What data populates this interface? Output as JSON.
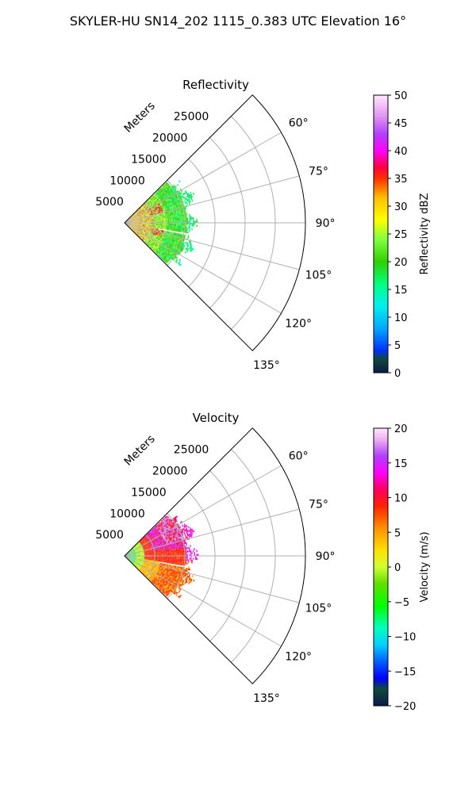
{
  "title": "SKYLER-HU  SN14_202  1115_0.383 UTC Elevation 16°",
  "chart_data": [
    {
      "type": "heatmap",
      "subtype": "polar-sector (PPI)",
      "title": "Reflectivity",
      "radial_label": "Meters",
      "radial_ticks": [
        "5000",
        "10000",
        "15000",
        "20000",
        "25000"
      ],
      "radial_lim": [
        0,
        30000
      ],
      "angle_ticks": [
        "60°",
        "75°",
        "90°",
        "105°",
        "120°",
        "135°"
      ],
      "angle_lim": [
        45,
        135
      ],
      "data_extent_m": [
        0,
        12500
      ],
      "colorbar": {
        "label": "Reflectivity dBZ",
        "ticks": [
          "0",
          "5",
          "10",
          "15",
          "20",
          "25",
          "30",
          "35",
          "40",
          "45",
          "50"
        ],
        "range": [
          0,
          50
        ]
      },
      "description_values": {
        "dominant_range_dBZ": [
          15,
          25
        ],
        "near_core_max_dBZ": 40
      }
    },
    {
      "type": "heatmap",
      "subtype": "polar-sector (PPI)",
      "title": "Velocity",
      "radial_label": "Meters",
      "radial_ticks": [
        "5000",
        "10000",
        "15000",
        "20000",
        "25000"
      ],
      "radial_lim": [
        0,
        30000
      ],
      "angle_ticks": [
        "60°",
        "75°",
        "90°",
        "105°",
        "120°",
        "135°"
      ],
      "angle_lim": [
        45,
        135
      ],
      "data_extent_m": [
        0,
        12500
      ],
      "colorbar": {
        "label": "Velocity (m/s)",
        "ticks": [
          "−20",
          "−15",
          "−10",
          "−5",
          "0",
          "5",
          "10",
          "15",
          "20"
        ],
        "range": [
          -20,
          20
        ]
      },
      "description_values": {
        "near_range_m_s": [
          -10,
          0
        ],
        "mid_range_m_s": [
          5,
          12
        ],
        "far_upper_m_s": [
          12,
          17
        ]
      }
    }
  ]
}
